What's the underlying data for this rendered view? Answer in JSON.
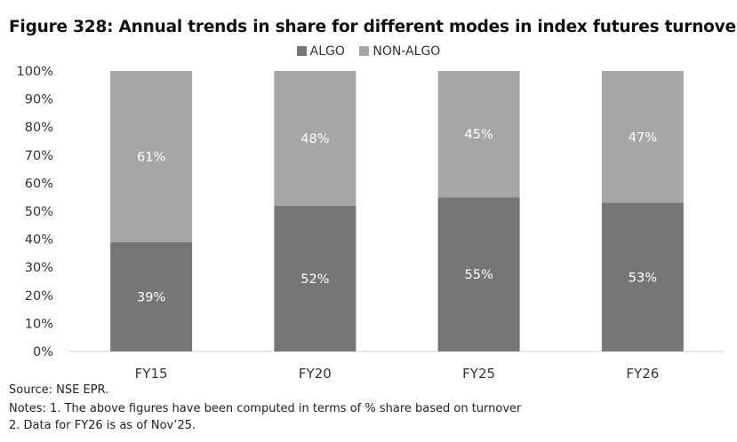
{
  "chart_data": {
    "type": "bar",
    "stacked": true,
    "title": "Figure 328: Annual trends in share for different modes in index futures turnover",
    "categories": [
      "FY15",
      "FY20",
      "FY25",
      "FY26"
    ],
    "series": [
      {
        "name": "ALGO",
        "values": [
          39,
          52,
          55,
          53
        ],
        "labels": [
          "39%",
          "52%",
          "55%",
          "53%"
        ],
        "color": "#767676"
      },
      {
        "name": "NON-ALGO",
        "values": [
          61,
          48,
          45,
          47
        ],
        "labels": [
          "61%",
          "48%",
          "45%",
          "47%"
        ],
        "color": "#a6a6a6"
      }
    ],
    "ylim": [
      0,
      100
    ],
    "yticks": [
      "0%",
      "10%",
      "20%",
      "30%",
      "40%",
      "50%",
      "60%",
      "70%",
      "80%",
      "90%",
      "100%"
    ],
    "xlabel": "",
    "ylabel": "",
    "legend": "top-center",
    "grid": false
  },
  "footer": {
    "source": "Source: NSE EPR.",
    "note1": "Notes: 1. The above figures have been computed in terms of % share based on turnover",
    "note2": "2. Data for FY26 is as of Nov’25."
  }
}
